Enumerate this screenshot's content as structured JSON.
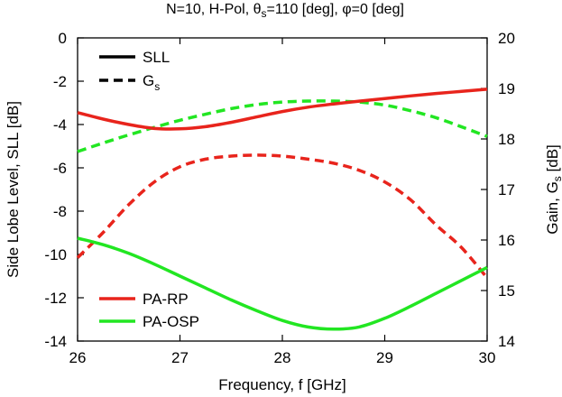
{
  "chart_data": {
    "type": "line",
    "title": {
      "main": "N=10, H-Pol, θ",
      "theta_sub": "s",
      "rest": "=110 [deg], φ=0 [deg]"
    },
    "xlabel": "Frequency, f [GHz]",
    "ylabel_left": "Side Lobe Level, SLL [dB]",
    "ylabel_right": {
      "main": "Gain, G",
      "sub": "s",
      "rest": " [dB]"
    },
    "xlim": [
      26,
      30
    ],
    "ylim_left": [
      -14,
      0
    ],
    "ylim_right": [
      14,
      20
    ],
    "x_ticks": [
      "26",
      "27",
      "28",
      "29",
      "30"
    ],
    "y_left_ticks": [
      "0",
      "-2",
      "-4",
      "-6",
      "-8",
      "-10",
      "-12",
      "-14"
    ],
    "y_right_ticks": [
      "20",
      "19",
      "18",
      "17",
      "16",
      "15",
      "14"
    ],
    "grid": false,
    "legend_style": {
      "position": "top-left",
      "entries": [
        {
          "label": "SLL",
          "dash": "solid"
        },
        {
          "label": "G",
          "sub": "s",
          "dash": "dashed"
        }
      ]
    },
    "legend_color": {
      "position": "bottom-left",
      "entries": [
        {
          "label": "PA-RP",
          "color": "#e8241c"
        },
        {
          "label": "PA-OSP",
          "color": "#22e622"
        }
      ]
    },
    "series": [
      {
        "name": "PA-RP",
        "metric": "SLL",
        "axis": "left",
        "dash": "solid",
        "color": "#e8241c",
        "x": [
          26,
          26.25,
          26.5,
          26.75,
          27,
          27.25,
          27.5,
          27.75,
          28,
          28.25,
          28.5,
          28.75,
          29,
          29.25,
          29.5,
          29.75,
          30
        ],
        "y": [
          -3.45,
          -3.75,
          -4.0,
          -4.18,
          -4.2,
          -4.1,
          -3.9,
          -3.65,
          -3.4,
          -3.2,
          -3.05,
          -2.92,
          -2.8,
          -2.68,
          -2.57,
          -2.47,
          -2.37
        ]
      },
      {
        "name": "PA-OSP",
        "metric": "SLL",
        "axis": "left",
        "dash": "solid",
        "color": "#22e622",
        "x": [
          26,
          26.25,
          26.5,
          26.75,
          27,
          27.25,
          27.5,
          27.75,
          28,
          28.25,
          28.5,
          28.75,
          29,
          29.25,
          29.5,
          29.75,
          30
        ],
        "y": [
          -9.25,
          -9.55,
          -9.95,
          -10.45,
          -11.0,
          -11.55,
          -12.1,
          -12.6,
          -13.05,
          -13.35,
          -13.45,
          -13.35,
          -12.95,
          -12.4,
          -11.8,
          -11.2,
          -10.6
        ]
      },
      {
        "name": "PA-RP",
        "metric": "Gs",
        "axis": "right",
        "dash": "dashed",
        "color": "#e8241c",
        "x": [
          26,
          26.25,
          26.5,
          26.75,
          27,
          27.25,
          27.5,
          27.75,
          28,
          28.25,
          28.5,
          28.75,
          29,
          29.25,
          29.5,
          29.75,
          30
        ],
        "y": [
          15.65,
          16.15,
          16.7,
          17.15,
          17.45,
          17.6,
          17.66,
          17.68,
          17.66,
          17.6,
          17.52,
          17.38,
          17.15,
          16.8,
          16.3,
          15.85,
          15.25
        ]
      },
      {
        "name": "PA-OSP",
        "metric": "Gs",
        "axis": "right",
        "dash": "dashed",
        "color": "#22e622",
        "x": [
          26,
          26.25,
          26.5,
          26.75,
          27,
          27.25,
          27.5,
          27.75,
          28,
          28.25,
          28.5,
          28.75,
          29,
          29.25,
          29.5,
          29.75,
          30
        ],
        "y": [
          17.75,
          17.92,
          18.08,
          18.23,
          18.37,
          18.49,
          18.6,
          18.68,
          18.73,
          18.75,
          18.75,
          18.73,
          18.67,
          18.56,
          18.42,
          18.24,
          18.05
        ]
      }
    ]
  }
}
